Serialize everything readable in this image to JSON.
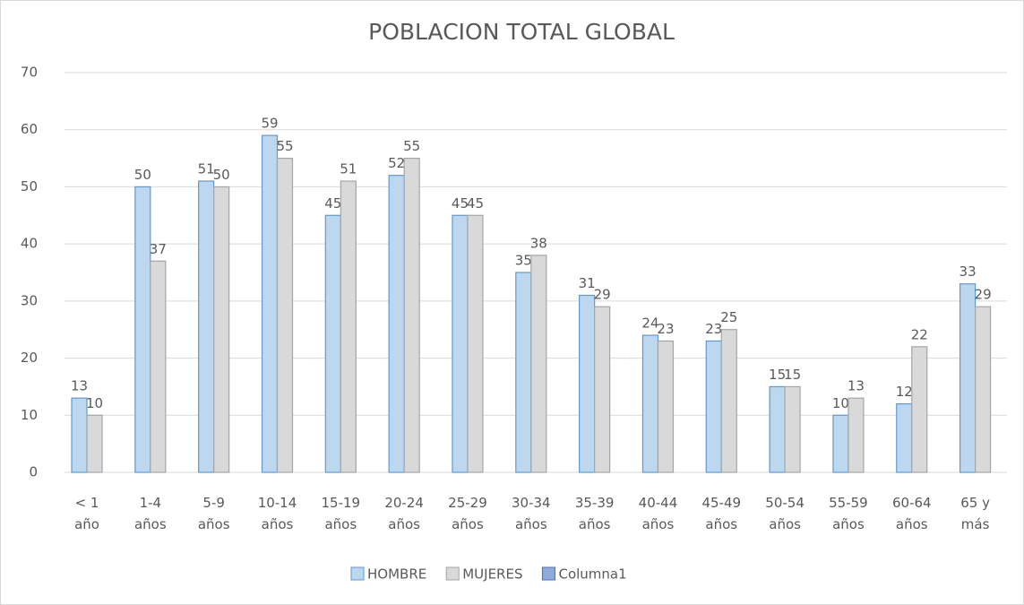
{
  "chart_data": {
    "type": "bar",
    "title": "POBLACION TOTAL GLOBAL",
    "categories": [
      "< 1 año",
      "1-4 años",
      "5-9 años",
      "10-14 años",
      "15-19 años",
      "20-24 años",
      "25-29 años",
      "30-34 años",
      "35-39 años",
      "40-44 años",
      "45-49 años",
      "50-54 años",
      "55-59 años",
      "60-64 años",
      "65 y más"
    ],
    "series": [
      {
        "name": "HOMBRE",
        "color": "#bdd7ee",
        "border": "#5b9bd5",
        "values": [
          13,
          50,
          51,
          59,
          45,
          52,
          45,
          35,
          31,
          24,
          23,
          15,
          10,
          12,
          33
        ]
      },
      {
        "name": "MUJERES",
        "color": "#d9d9d9",
        "border": "#a5a5a5",
        "values": [
          10,
          37,
          50,
          55,
          51,
          55,
          45,
          38,
          29,
          23,
          25,
          15,
          13,
          22,
          29
        ]
      },
      {
        "name": "Columna1",
        "color": "#8faadc",
        "border": "#4472c4",
        "values": [
          null,
          null,
          null,
          null,
          null,
          null,
          null,
          null,
          null,
          null,
          null,
          null,
          null,
          null,
          null
        ]
      }
    ],
    "ylim": [
      0,
      70
    ],
    "yticks": [
      0,
      10,
      20,
      30,
      40,
      50,
      60,
      70
    ],
    "grid": true,
    "legend": "bottom"
  }
}
